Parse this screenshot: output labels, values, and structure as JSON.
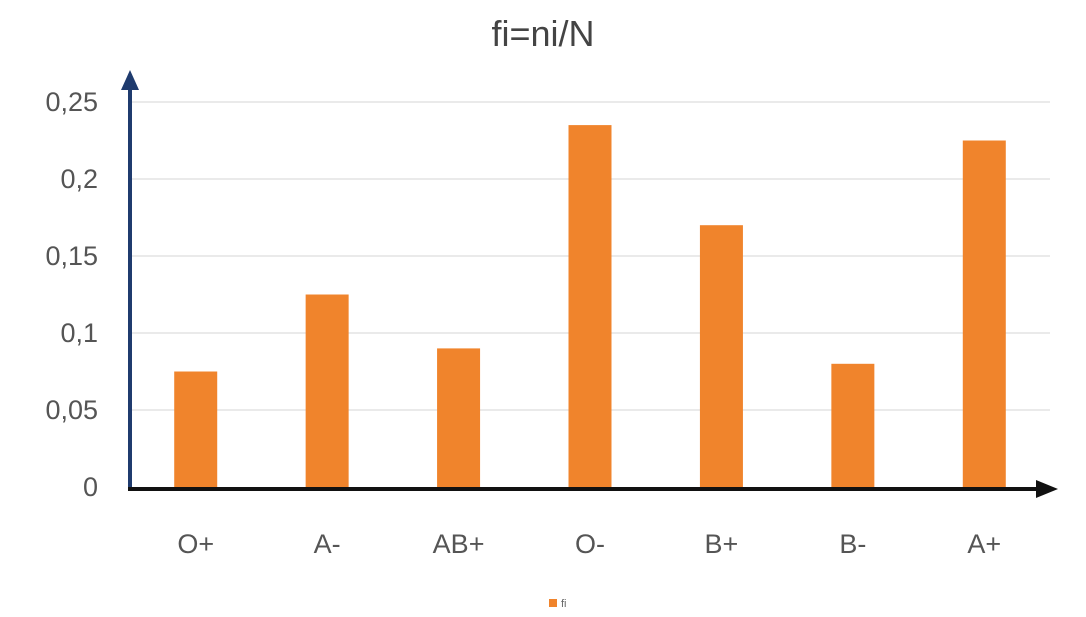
{
  "chart_data": {
    "type": "bar",
    "title": "fi=ni/N",
    "xlabel": "",
    "ylabel": "",
    "categories": [
      "O+",
      "A-",
      "AB+",
      "O-",
      "B+",
      "B-",
      "A+"
    ],
    "series": [
      {
        "name": "fi",
        "values": [
          0.075,
          0.125,
          0.09,
          0.235,
          0.17,
          0.08,
          0.225
        ]
      }
    ],
    "ylim": [
      0,
      0.25
    ],
    "yticks": [
      0,
      0.05,
      0.1,
      0.15,
      0.2,
      0.25
    ],
    "ytick_labels": [
      "0",
      "0,05",
      "0,1",
      "0,15",
      "0,2",
      "0,25"
    ],
    "grid": true,
    "legend": {
      "position": "bottom",
      "entries": [
        "fi"
      ]
    },
    "colors": {
      "bar": "#f0842c",
      "y_axis": "#1f3b6e",
      "x_axis": "#111111"
    }
  }
}
